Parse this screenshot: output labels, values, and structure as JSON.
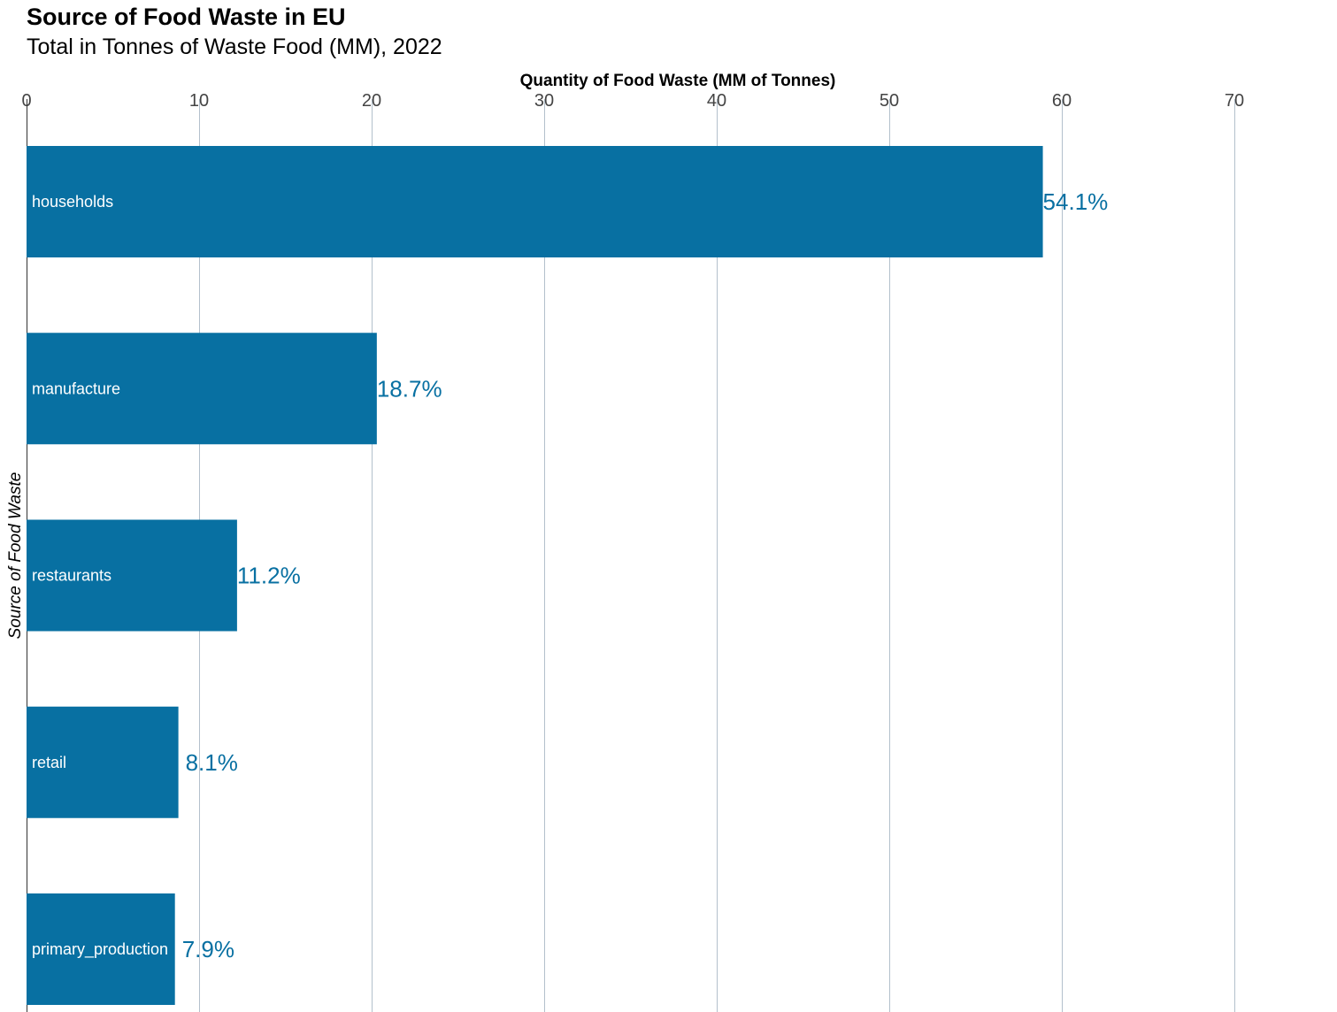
{
  "chart_data": {
    "type": "bar",
    "orientation": "horizontal",
    "title": "Source of Food Waste in EU",
    "subtitle": "Total in Tonnes of Waste Food (MM), 2022",
    "xlabel": "Quantity of Food Waste (MM of Tonnes)",
    "ylabel": "Source of Food Waste",
    "xlim": [
      0,
      75
    ],
    "x_ticks": [
      "0",
      "10",
      "20",
      "30",
      "40",
      "50",
      "60",
      "70"
    ],
    "x_axis_position": "top",
    "grid": true,
    "categories": [
      "households",
      "manufacture",
      "restaurants",
      "retail",
      "primary_production"
    ],
    "values": [
      58.9,
      20.3,
      12.2,
      8.8,
      8.6
    ],
    "data_labels": [
      "54.1%",
      "18.7%",
      "11.2%",
      "8.1%",
      "7.9%"
    ],
    "bar_color": "#0870a2",
    "gridline_color": "#b3c0cc",
    "label_color": "#0870a2"
  }
}
